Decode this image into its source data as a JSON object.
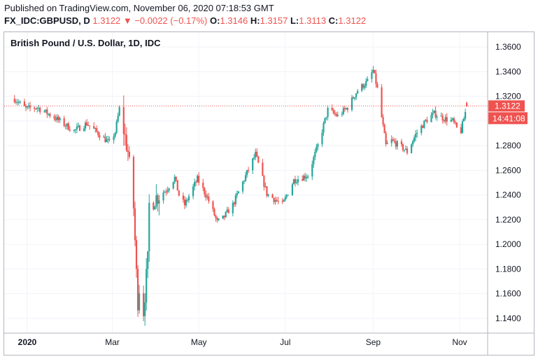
{
  "header": {
    "published": "Published on TradingView.com, November 06, 2020 07:18:53 GMT",
    "symbol": "FX_IDC:GBPUSD, D",
    "last": "1.3122",
    "arrow": "▼",
    "change": "−0.0022 (−0.17%)",
    "o_label": "O:",
    "o_value": "1.3146",
    "h_label": "H:",
    "h_value": "1.3157",
    "l_label": "L:",
    "l_value": "1.3113",
    "c_label": "C:",
    "c_value": "1.3122"
  },
  "colors": {
    "up": "#26a69a",
    "down": "#ef5350",
    "grid": "#f0f3fa",
    "axis": "#b2b5be",
    "last_line": "#ef5350"
  },
  "chart_data": {
    "type": "candlestick",
    "title": "British Pound / U.S. Dollar, 1D, IDC",
    "ylim": [
      1.128,
      1.372
    ],
    "y_ticks": [
      "1.3600",
      "1.3400",
      "1.3200",
      "1.3000",
      "1.2800",
      "1.2600",
      "1.2400",
      "1.2200",
      "1.2000",
      "1.1800",
      "1.1600",
      "1.1400"
    ],
    "x_ticks": [
      {
        "label": "2020",
        "date": "2020-01-01",
        "bold": true
      },
      {
        "label": "Mar",
        "date": "2020-03-01",
        "bold": false
      },
      {
        "label": "May",
        "date": "2020-05-01",
        "bold": false
      },
      {
        "label": "Jul",
        "date": "2020-07-01",
        "bold": false
      },
      {
        "label": "Sep",
        "date": "2020-09-01",
        "bold": false
      },
      {
        "label": "Nov",
        "date": "2020-11-01",
        "bold": false
      }
    ],
    "last_price": "1.3122",
    "countdown": "14:41:08",
    "path_dates": [
      "2019-12-23",
      "2019-12-31",
      "2020-01-08",
      "2020-01-20",
      "2020-02-03",
      "2020-02-12",
      "2020-02-20",
      "2020-02-28",
      "2020-03-03",
      "2020-03-06",
      "2020-03-12",
      "2020-03-16",
      "2020-03-18",
      "2020-03-19",
      "2020-03-20",
      "2020-03-23",
      "2020-03-26",
      "2020-03-27",
      "2020-04-01",
      "2020-04-08",
      "2020-04-14",
      "2020-04-17",
      "2020-04-21",
      "2020-04-30",
      "2020-05-07",
      "2020-05-14",
      "2020-05-18",
      "2020-05-25",
      "2020-06-04",
      "2020-06-10",
      "2020-06-18",
      "2020-06-29",
      "2020-07-07",
      "2020-07-17",
      "2020-07-24",
      "2020-07-31",
      "2020-08-07",
      "2020-08-14",
      "2020-08-21",
      "2020-08-28",
      "2020-09-01",
      "2020-09-04",
      "2020-09-10",
      "2020-09-14",
      "2020-09-22",
      "2020-09-25",
      "2020-10-01",
      "2020-10-08",
      "2020-10-14",
      "2020-10-21",
      "2020-10-27",
      "2020-10-30",
      "2020-11-02",
      "2020-11-04",
      "2020-11-06"
    ],
    "path_closes": [
      1.318,
      1.31,
      1.311,
      1.303,
      1.292,
      1.298,
      1.29,
      1.282,
      1.291,
      1.31,
      1.275,
      1.23,
      1.176,
      1.154,
      1.165,
      1.146,
      1.187,
      1.232,
      1.238,
      1.244,
      1.254,
      1.24,
      1.232,
      1.253,
      1.238,
      1.218,
      1.221,
      1.232,
      1.258,
      1.273,
      1.241,
      1.232,
      1.252,
      1.256,
      1.28,
      1.309,
      1.304,
      1.311,
      1.325,
      1.332,
      1.341,
      1.326,
      1.28,
      1.284,
      1.278,
      1.275,
      1.289,
      1.3,
      1.306,
      1.302,
      1.3,
      1.294,
      1.292,
      1.302,
      1.3122
    ]
  }
}
